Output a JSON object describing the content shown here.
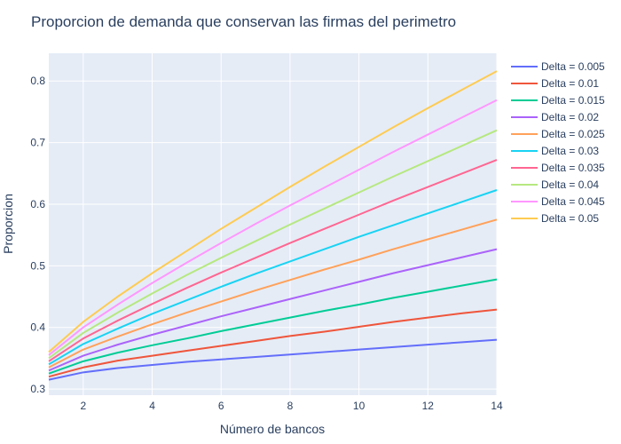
{
  "chart_data": {
    "type": "line",
    "title": "Proporcion de demanda que conservan las firmas del perimetro",
    "xlabel": "Número de bancos",
    "ylabel": "Proporcion",
    "xlim": [
      1,
      14
    ],
    "ylim": [
      0.29,
      0.845
    ],
    "xticks": [
      2,
      4,
      6,
      8,
      10,
      12,
      14
    ],
    "yticks": [
      0.3,
      0.4,
      0.5,
      0.6,
      0.7,
      0.8
    ],
    "grid": true,
    "legend_position": "right",
    "x": [
      1,
      2,
      3,
      4,
      5,
      6,
      7,
      8,
      9,
      10,
      11,
      12,
      13,
      14
    ],
    "series": [
      {
        "name": "Delta = 0.005",
        "color": "#636efa",
        "values": [
          0.315,
          0.327,
          0.334,
          0.339,
          0.344,
          0.348,
          0.352,
          0.356,
          0.36,
          0.364,
          0.368,
          0.372,
          0.376,
          0.38
        ]
      },
      {
        "name": "Delta = 0.01",
        "color": "#ef553b",
        "values": [
          0.32,
          0.335,
          0.346,
          0.354,
          0.362,
          0.37,
          0.378,
          0.386,
          0.393,
          0.401,
          0.409,
          0.416,
          0.423,
          0.429
        ]
      },
      {
        "name": "Delta = 0.015",
        "color": "#00cc96",
        "values": [
          0.325,
          0.345,
          0.359,
          0.371,
          0.382,
          0.394,
          0.405,
          0.416,
          0.427,
          0.437,
          0.448,
          0.458,
          0.468,
          0.478
        ]
      },
      {
        "name": "Delta = 0.02",
        "color": "#ab63fa",
        "values": [
          0.33,
          0.354,
          0.372,
          0.388,
          0.403,
          0.418,
          0.432,
          0.446,
          0.46,
          0.474,
          0.488,
          0.501,
          0.514,
          0.527
        ]
      },
      {
        "name": "Delta = 0.025",
        "color": "#ffa15a",
        "values": [
          0.335,
          0.364,
          0.385,
          0.405,
          0.424,
          0.442,
          0.46,
          0.477,
          0.494,
          0.51,
          0.527,
          0.543,
          0.559,
          0.575
        ]
      },
      {
        "name": "Delta = 0.03",
        "color": "#19d3f3",
        "values": [
          0.34,
          0.373,
          0.398,
          0.422,
          0.444,
          0.466,
          0.487,
          0.507,
          0.527,
          0.547,
          0.566,
          0.585,
          0.604,
          0.623
        ]
      },
      {
        "name": "Delta = 0.035",
        "color": "#ff6692",
        "values": [
          0.345,
          0.382,
          0.411,
          0.438,
          0.464,
          0.489,
          0.513,
          0.537,
          0.56,
          0.583,
          0.606,
          0.628,
          0.65,
          0.672
        ]
      },
      {
        "name": "Delta = 0.04",
        "color": "#b6e880",
        "values": [
          0.35,
          0.391,
          0.424,
          0.455,
          0.485,
          0.513,
          0.54,
          0.567,
          0.593,
          0.619,
          0.645,
          0.67,
          0.695,
          0.72
        ]
      },
      {
        "name": "Delta = 0.045",
        "color": "#ff97ff",
        "values": [
          0.355,
          0.4,
          0.437,
          0.472,
          0.505,
          0.537,
          0.568,
          0.598,
          0.627,
          0.656,
          0.685,
          0.713,
          0.741,
          0.769
        ]
      },
      {
        "name": "Delta = 0.05",
        "color": "#fecb52",
        "values": [
          0.36,
          0.409,
          0.45,
          0.488,
          0.524,
          0.56,
          0.594,
          0.628,
          0.661,
          0.693,
          0.725,
          0.756,
          0.786,
          0.816
        ]
      }
    ]
  }
}
